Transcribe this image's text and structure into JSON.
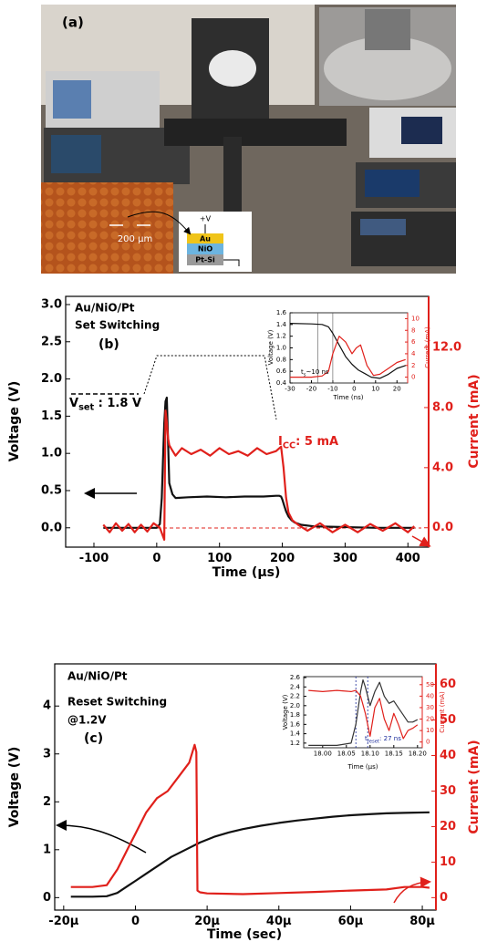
{
  "panel_a": {
    "label": "(a)",
    "scale_bar": "200 μm",
    "stack": [
      "+V",
      "Au",
      "NiO",
      "Pt-Si"
    ]
  },
  "chart_data": [
    {
      "type": "line",
      "title": "Au/NiO/Pt",
      "subtitle": "Set Switching",
      "panel": "(b)",
      "xlabel": "Time (μs)",
      "ylabel": "Voltage (V)",
      "y2label": "Current (mA)",
      "y2color": "#e0201b",
      "xlim": [
        -145,
        433
      ],
      "xticks": [
        -100,
        0,
        100,
        200,
        300,
        400
      ],
      "ylim": [
        -0.26,
        3.11
      ],
      "yticks": [
        {
          "value": 0,
          "label": "0.0"
        },
        0.5,
        {
          "value": 1,
          "label": "1.0"
        },
        1.5,
        {
          "value": 2,
          "label": "2.0"
        },
        2.5,
        {
          "value": 3,
          "label": "3.0"
        }
      ],
      "y2lim": [
        -1.29,
        15.4
      ],
      "y2ticks": [
        {
          "value": 0,
          "label": "0.0"
        },
        {
          "value": 4,
          "label": "4.0"
        },
        {
          "value": 8,
          "label": "8.0"
        },
        {
          "value": 12,
          "label": "12.0"
        }
      ],
      "annotations": [
        {
          "text": "V",
          "sub": "set",
          "rest": " : 1.8 V",
          "color": "#000000"
        },
        {
          "text": "I",
          "sub": "CC",
          "rest": ": 5 mA",
          "color": "#e0201b"
        }
      ],
      "series": [
        {
          "color": "#111111",
          "axis": "y",
          "x": [
            -85,
            -60,
            -40,
            -20,
            0,
            5,
            8,
            10,
            12,
            14,
            16,
            18,
            20,
            25,
            30,
            50,
            80,
            110,
            140,
            170,
            190,
            195,
            198,
            200,
            203,
            206,
            210,
            215,
            220,
            230,
            250,
            300,
            350,
            410
          ],
          "values": [
            0,
            0,
            0,
            0,
            0,
            0.05,
            0.4,
            0.9,
            1.4,
            1.7,
            1.75,
            1.2,
            0.6,
            0.45,
            0.4,
            0.41,
            0.42,
            0.41,
            0.42,
            0.42,
            0.43,
            0.43,
            0.42,
            0.38,
            0.3,
            0.22,
            0.15,
            0.1,
            0.07,
            0.04,
            0.02,
            0.01,
            0,
            0
          ]
        },
        {
          "color": "#e0201b",
          "axis": "y2",
          "x": [
            -85,
            -75,
            -65,
            -55,
            -45,
            -35,
            -25,
            -15,
            -5,
            5,
            12,
            14,
            16,
            18,
            20,
            24,
            30,
            40,
            55,
            70,
            85,
            100,
            115,
            130,
            145,
            160,
            175,
            190,
            198,
            202,
            206,
            210,
            216,
            225,
            240,
            260,
            280,
            300,
            320,
            340,
            360,
            380,
            400,
            410
          ],
          "values": [
            0.2,
            -0.3,
            0.3,
            -0.2,
            0.25,
            -0.3,
            0.2,
            -0.25,
            0.3,
            0,
            -0.8,
            7.8,
            7,
            6,
            5.5,
            5.2,
            4.8,
            5.3,
            4.9,
            5.2,
            4.8,
            5.3,
            4.9,
            5.1,
            4.8,
            5.3,
            4.9,
            5.1,
            5.4,
            4,
            2,
            1,
            0.5,
            0.2,
            -0.2,
            0.3,
            -0.3,
            0.2,
            -0.3,
            0.25,
            -0.2,
            0.3,
            -0.3,
            0.1
          ]
        }
      ]
    },
    {
      "type": "line",
      "xlabel": "Time (ns)",
      "ylabel": "Voltage (V)",
      "y2label": "Current (mA)",
      "y2color": "#e0201b",
      "xlim": [
        -30,
        25
      ],
      "xticks": [
        -30,
        -20,
        -10,
        0,
        10,
        20
      ],
      "ylim": [
        0.4,
        1.6
      ],
      "yticks": [
        0.4,
        0.6,
        0.8,
        {
          "value": 1,
          "label": "1.0"
        },
        1.2,
        1.4,
        1.6
      ],
      "y2lim": [
        -1,
        11
      ],
      "y2ticks": [
        0,
        2,
        4,
        6,
        8,
        10
      ],
      "annotations": [
        {
          "text": "t",
          "sub": "s",
          "rest": "~10 ns",
          "color": "#000000"
        }
      ],
      "series": [
        {
          "color": "#111111",
          "axis": "y",
          "x": [
            -30,
            -20,
            -15,
            -12,
            -10,
            -7,
            -4,
            -1,
            2,
            5,
            8,
            12,
            16,
            20,
            24
          ],
          "values": [
            1.42,
            1.41,
            1.4,
            1.36,
            1.25,
            1.05,
            0.85,
            0.72,
            0.62,
            0.56,
            0.5,
            0.48,
            0.55,
            0.65,
            0.7
          ]
        },
        {
          "color": "#e0201b",
          "axis": "y2",
          "x": [
            -30,
            -20,
            -15,
            -12,
            -10,
            -7,
            -4,
            -1,
            1,
            3,
            6,
            9,
            12,
            16,
            20,
            24
          ],
          "values": [
            0,
            0,
            0.2,
            1,
            4,
            7,
            6,
            4,
            5,
            5.5,
            2,
            0.3,
            0.5,
            1.5,
            2.5,
            3
          ]
        }
      ]
    },
    {
      "type": "line",
      "title": "Au/NiO/Pt",
      "subtitle": "Reset Switching",
      "note": "@1.2V",
      "panel": "(c)",
      "xlabel": "Time (sec)",
      "ylabel": "Voltage (V)",
      "y2label": "Current (mA)",
      "y2color": "#e0201b",
      "xlim": [
        -22.5,
        83.8
      ],
      "xticks": [
        {
          "value": -20,
          "label": "-20μ"
        },
        0,
        {
          "value": 20,
          "label": "20μ"
        },
        {
          "value": 40,
          "label": "40μ"
        },
        {
          "value": 60,
          "label": "60μ"
        },
        {
          "value": 80,
          "label": "80μ"
        }
      ],
      "ylim": [
        -0.26,
        4.88
      ],
      "yticks": [
        0,
        1,
        2,
        3,
        4
      ],
      "y2lim": [
        -3.5,
        65.8
      ],
      "y2ticks": [
        0,
        10,
        20,
        30,
        40,
        50,
        60
      ],
      "series": [
        {
          "color": "#111111",
          "axis": "y",
          "x": [
            -18,
            -12,
            -8,
            -5,
            -2,
            0,
            3,
            6,
            10,
            14,
            18,
            22,
            26,
            30,
            35,
            40,
            45,
            50,
            55,
            60,
            65,
            70,
            75,
            82
          ],
          "values": [
            0.02,
            0.02,
            0.03,
            0.1,
            0.25,
            0.35,
            0.5,
            0.65,
            0.85,
            1.0,
            1.15,
            1.27,
            1.36,
            1.43,
            1.5,
            1.56,
            1.61,
            1.65,
            1.69,
            1.72,
            1.74,
            1.76,
            1.77,
            1.78
          ]
        },
        {
          "color": "#e0201b",
          "axis": "y2",
          "x": [
            -18,
            -12,
            -8,
            -5,
            -2,
            0,
            3,
            6,
            9,
            12,
            15,
            16.5,
            17,
            17.3,
            18,
            20,
            30,
            40,
            50,
            60,
            70,
            75,
            80,
            82
          ],
          "values": [
            3,
            3,
            3.5,
            8,
            14,
            18,
            24,
            28,
            30,
            34,
            38,
            43,
            41,
            2,
            1.5,
            1.2,
            1,
            1.3,
            1.6,
            2,
            2.3,
            3,
            3,
            2.8
          ]
        }
      ]
    },
    {
      "type": "line",
      "xlabel": "Time (μs)",
      "ylabel": "Voltage (V)",
      "y2label": "Current (mA)",
      "y2color": "#e0201b",
      "xlim": [
        17.96,
        18.21
      ],
      "xticks": [
        {
          "value": 18,
          "label": "18.00"
        },
        18.05,
        {
          "value": 18.1,
          "label": "18.10"
        },
        18.15,
        {
          "value": 18.2,
          "label": "18.20"
        }
      ],
      "ylim": [
        1.1,
        2.62
      ],
      "yticks": [
        1.2,
        1.4,
        1.6,
        1.8,
        {
          "value": 2,
          "label": "2.0"
        },
        2.2,
        2.4,
        2.6
      ],
      "y2lim": [
        -5,
        57
      ],
      "y2ticks": [
        0,
        10,
        20,
        30,
        40,
        50
      ],
      "annotations": [
        {
          "text": "t",
          "sub": "reset",
          "rest": ": 27 ns",
          "color": "#1a2a9a"
        }
      ],
      "series": [
        {
          "color": "#333333",
          "axis": "y",
          "x": [
            17.97,
            18.0,
            18.03,
            18.06,
            18.07,
            18.08,
            18.085,
            18.09,
            18.1,
            18.11,
            18.12,
            18.13,
            18.14,
            18.15,
            18.16,
            18.17,
            18.18,
            18.19,
            18.2
          ],
          "values": [
            1.15,
            1.15,
            1.15,
            1.2,
            1.6,
            2.3,
            2.55,
            2.4,
            2.0,
            2.3,
            2.5,
            2.2,
            2.05,
            2.1,
            1.95,
            1.8,
            1.65,
            1.65,
            1.7
          ]
        },
        {
          "color": "#e0201b",
          "axis": "y2",
          "x": [
            17.97,
            18.0,
            18.03,
            18.06,
            18.07,
            18.08,
            18.09,
            18.1,
            18.11,
            18.12,
            18.13,
            18.14,
            18.15,
            18.16,
            18.17,
            18.18,
            18.19,
            18.2
          ],
          "values": [
            45,
            44,
            45,
            44,
            45,
            40,
            25,
            5,
            30,
            38,
            20,
            10,
            25,
            15,
            3,
            10,
            12,
            15
          ]
        }
      ]
    }
  ]
}
